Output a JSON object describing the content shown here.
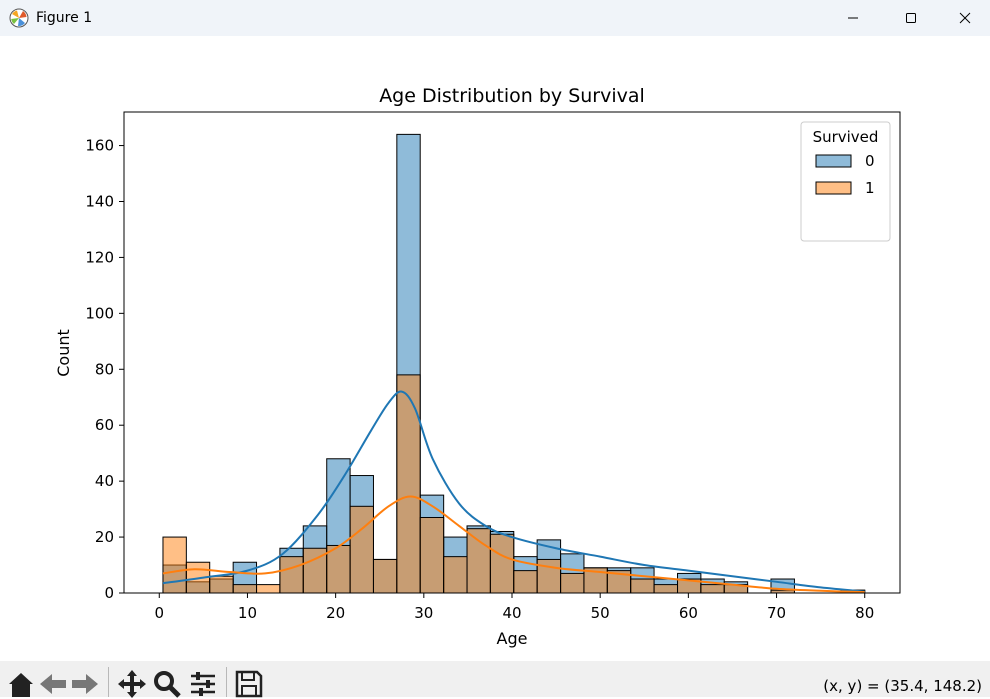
{
  "window": {
    "title": "Figure 1",
    "icons": {
      "app": "matplotlib-icon",
      "minimize": "minimize-icon",
      "maximize": "maximize-icon",
      "close": "close-icon"
    }
  },
  "toolbar": {
    "buttons": [
      "home-icon",
      "back-icon",
      "forward-icon",
      "pan-icon",
      "zoom-icon",
      "configure-subplots-icon",
      "save-icon"
    ],
    "coords_label": "(x, y) = ",
    "coords_value": "(35.4, 148.2)"
  },
  "chart_data": {
    "type": "histogram",
    "title": "Age Distribution by Survival",
    "xlabel": "Age",
    "ylabel": "Count",
    "xlim": [
      -4,
      84
    ],
    "ylim": [
      0,
      172
    ],
    "xticks": [
      0,
      10,
      20,
      30,
      40,
      50,
      60,
      70,
      80
    ],
    "yticks": [
      0,
      20,
      40,
      60,
      80,
      100,
      120,
      140,
      160
    ],
    "bin_edges": [
      0.42,
      3.07,
      5.72,
      8.38,
      11.03,
      13.68,
      16.33,
      18.99,
      21.64,
      24.29,
      26.94,
      29.59,
      32.25,
      34.9,
      37.55,
      40.2,
      42.85,
      45.51,
      48.16,
      50.81,
      53.46,
      56.11,
      58.77,
      61.42,
      64.07,
      66.72,
      69.37,
      72.03,
      74.68,
      77.33,
      80.0
    ],
    "legend": {
      "title": "Survived",
      "location": "top-right"
    },
    "grid": false,
    "series": [
      {
        "name": "0",
        "color": "#1f77b4",
        "counts": [
          10,
          4,
          5,
          11,
          0,
          16,
          24,
          48,
          42,
          12,
          164,
          35,
          20,
          24,
          22,
          13,
          19,
          14,
          9,
          9,
          9,
          5,
          7,
          5,
          4,
          0,
          5,
          0,
          0,
          1
        ],
        "kde": [
          [
            0.42,
            3.5
          ],
          [
            5,
            5.5
          ],
          [
            10,
            8
          ],
          [
            14,
            14
          ],
          [
            18,
            28
          ],
          [
            21,
            42
          ],
          [
            24,
            58
          ],
          [
            26,
            68
          ],
          [
            27.5,
            72
          ],
          [
            29,
            66
          ],
          [
            31,
            48
          ],
          [
            34,
            32
          ],
          [
            37,
            24
          ],
          [
            40,
            20
          ],
          [
            45,
            16
          ],
          [
            50,
            13
          ],
          [
            55,
            10
          ],
          [
            60,
            8
          ],
          [
            65,
            6
          ],
          [
            70,
            4
          ],
          [
            75,
            2
          ],
          [
            80,
            0.5
          ]
        ]
      },
      {
        "name": "1",
        "color": "#ff7f0e",
        "counts": [
          20,
          11,
          6,
          3,
          3,
          13,
          16,
          17,
          31,
          12,
          78,
          27,
          13,
          23,
          21,
          8,
          12,
          7,
          9,
          8,
          5,
          3,
          5,
          3,
          3,
          0,
          1,
          0,
          0,
          1
        ],
        "kde": [
          [
            0.42,
            7
          ],
          [
            4,
            8.5
          ],
          [
            8,
            7.5
          ],
          [
            12,
            7
          ],
          [
            16,
            10
          ],
          [
            20,
            16
          ],
          [
            23,
            23
          ],
          [
            26,
            31
          ],
          [
            28.5,
            34.5
          ],
          [
            31,
            31
          ],
          [
            34,
            24
          ],
          [
            37,
            17
          ],
          [
            40,
            12
          ],
          [
            45,
            9
          ],
          [
            50,
            7.5
          ],
          [
            55,
            6
          ],
          [
            60,
            4.5
          ],
          [
            65,
            3
          ],
          [
            70,
            1.5
          ],
          [
            75,
            0.8
          ],
          [
            80,
            0.3
          ]
        ]
      }
    ]
  }
}
